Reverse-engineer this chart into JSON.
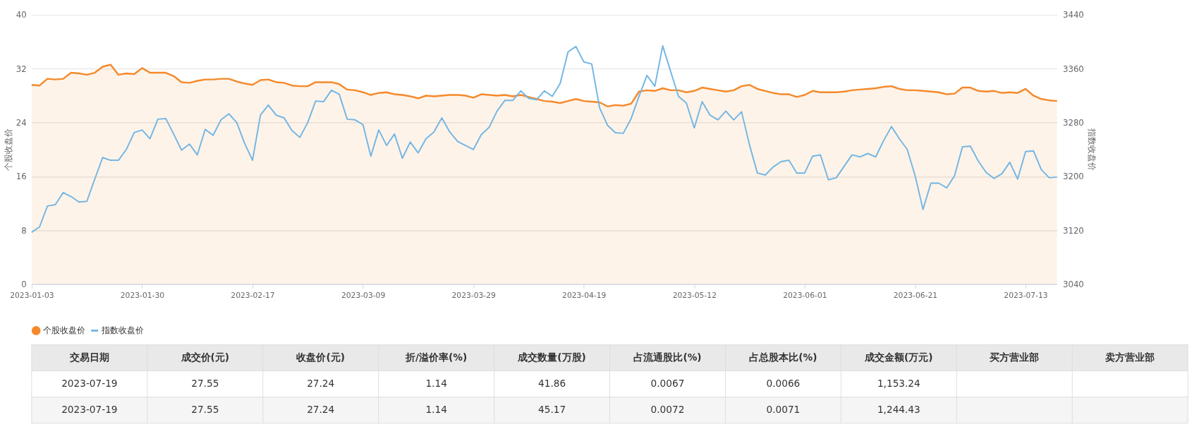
{
  "chart_data": [
    {
      "type": "line",
      "categories": [
        "2023-01-03",
        null,
        null,
        null,
        null,
        null,
        null,
        null,
        null,
        null,
        null,
        null,
        null,
        null,
        "2023-01-30",
        null,
        null,
        null,
        null,
        null,
        null,
        null,
        null,
        null,
        null,
        null,
        null,
        null,
        "2023-02-17",
        null,
        null,
        null,
        null,
        null,
        null,
        null,
        null,
        null,
        null,
        null,
        null,
        null,
        "2023-03-09",
        null,
        null,
        null,
        null,
        null,
        null,
        null,
        null,
        null,
        null,
        null,
        null,
        null,
        "2023-03-29",
        null,
        null,
        null,
        null,
        null,
        null,
        null,
        null,
        null,
        null,
        null,
        null,
        null,
        "2023-04-19",
        null,
        null,
        null,
        null,
        null,
        null,
        null,
        null,
        null,
        null,
        null,
        null,
        null,
        "2023-05-12",
        null,
        null,
        null,
        null,
        null,
        null,
        null,
        null,
        null,
        null,
        null,
        null,
        null,
        "2023-06-01",
        null,
        null,
        null,
        null,
        null,
        null,
        null,
        null,
        null,
        null,
        null,
        null,
        null,
        "2023-06-21",
        null,
        null,
        null,
        null,
        null,
        null,
        null,
        null,
        null,
        null,
        null,
        null,
        null,
        "2023-07-13",
        null,
        null,
        null,
        null
      ],
      "series": [
        {
          "name": "指数收盘价",
          "type": "line",
          "axis": "y2",
          "color": "#73b6e4",
          "values": [
            3117,
            3125,
            3156,
            3158,
            3176,
            3170,
            3162,
            3163,
            3196,
            3228,
            3224,
            3224,
            3240,
            3265,
            3269,
            3256,
            3285,
            3286,
            3263,
            3239,
            3248,
            3232,
            3270,
            3261,
            3284,
            3293,
            3280,
            3249,
            3224,
            3291,
            3306,
            3291,
            3287,
            3268,
            3258,
            3280,
            3312,
            3311,
            3328,
            3322,
            3285,
            3284,
            3277,
            3230,
            3269,
            3246,
            3263,
            3227,
            3251,
            3235,
            3256,
            3266,
            3287,
            3266,
            3252,
            3246,
            3240,
            3262,
            3273,
            3297,
            3313,
            3313,
            3327,
            3316,
            3314,
            3327,
            3319,
            3338,
            3385,
            3393,
            3370,
            3367,
            3302,
            3276,
            3265,
            3264,
            3286,
            3319,
            3350,
            3334,
            3394,
            3356,
            3319,
            3309,
            3272,
            3311,
            3291,
            3284,
            3297,
            3284,
            3296,
            3247,
            3205,
            3202,
            3214,
            3222,
            3224,
            3205,
            3205,
            3230,
            3232,
            3195,
            3198,
            3215,
            3232,
            3229,
            3234,
            3229,
            3253,
            3274,
            3256,
            3240,
            3201,
            3151,
            3190,
            3190,
            3183,
            3201,
            3244,
            3245,
            3223,
            3206,
            3197,
            3204,
            3221,
            3196,
            3237,
            3238,
            3210,
            3198,
            3199
          ]
        },
        {
          "name": "个股收盘价",
          "type": "area",
          "color": "#f5892a",
          "values": [
            29.6,
            29.5,
            30.5,
            30.4,
            30.5,
            31.4,
            31.3,
            31.1,
            31.4,
            32.3,
            32.6,
            31.1,
            31.3,
            31.2,
            32.1,
            31.4,
            31.4,
            31.4,
            30.9,
            30.0,
            29.9,
            30.2,
            30.4,
            30.4,
            30.5,
            30.5,
            30.1,
            29.8,
            29.6,
            30.3,
            30.4,
            30.0,
            29.9,
            29.5,
            29.4,
            29.4,
            30.0,
            30.0,
            30.0,
            29.7,
            28.9,
            28.8,
            28.5,
            28.1,
            28.4,
            28.5,
            28.2,
            28.1,
            27.9,
            27.6,
            28.0,
            27.9,
            28.0,
            28.1,
            28.1,
            28.0,
            27.7,
            28.2,
            28.1,
            28.0,
            28.1,
            27.9,
            28.1,
            27.8,
            27.5,
            27.2,
            27.1,
            26.9,
            27.2,
            27.5,
            27.2,
            27.1,
            27.0,
            26.4,
            26.6,
            26.5,
            26.8,
            28.6,
            28.8,
            28.7,
            29.1,
            28.8,
            28.8,
            28.5,
            28.7,
            29.2,
            29.0,
            28.8,
            28.6,
            28.8,
            29.4,
            29.6,
            29.0,
            28.7,
            28.4,
            28.2,
            28.2,
            27.8,
            28.1,
            28.7,
            28.5,
            28.5,
            28.5,
            28.6,
            28.8,
            28.9,
            29.0,
            29.1,
            29.3,
            29.4,
            29.0,
            28.8,
            28.8,
            28.7,
            28.6,
            28.5,
            28.2,
            28.3,
            29.2,
            29.2,
            28.7,
            28.6,
            28.7,
            28.4,
            28.5,
            28.4,
            29.0,
            28.0,
            27.5,
            27.3,
            27.2
          ]
        }
      ],
      "ylabel": "个股收盘价",
      "y2label": "指数收盘价",
      "ylim": [
        0,
        40
      ],
      "yticks": [
        0,
        8,
        16,
        24,
        32,
        40
      ],
      "y2lim": [
        3040,
        3440
      ],
      "y2ticks": [
        3040,
        3120,
        3200,
        3280,
        3360,
        3440
      ],
      "grid": "y",
      "legend": "bottom"
    },
    {
      "type": "other",
      "categories": [
        "交易日期",
        "成交价(元)",
        "收盘价(元)",
        "折/溢价率(%)",
        "成交数量(万股)",
        "占流通股比(%)",
        "占总股本比(%)",
        "成交金额(万元)",
        "买方营业部",
        "卖方营业部"
      ],
      "cells": [
        [
          "2023-07-19",
          "27.55",
          "27.24",
          "1.14",
          "41.86",
          "0.0067",
          "0.0066",
          "1,153.24",
          null,
          null
        ],
        [
          "2023-07-19",
          "27.55",
          "27.24",
          "1.14",
          "45.17",
          "0.0072",
          "0.0071",
          "1,244.43",
          null,
          null
        ]
      ]
    }
  ]
}
